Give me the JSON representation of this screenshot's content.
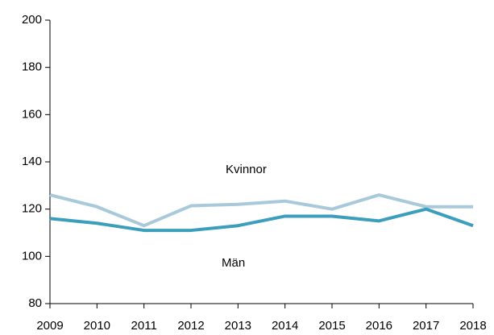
{
  "chart_data": {
    "type": "line",
    "x": [
      2009,
      2010,
      2011,
      2012,
      2013,
      2014,
      2015,
      2016,
      2017,
      2018
    ],
    "xlim": [
      2009,
      2018
    ],
    "xticks": [
      2009,
      2010,
      2011,
      2012,
      2013,
      2014,
      2015,
      2016,
      2017,
      2018
    ],
    "ylim": [
      80,
      200
    ],
    "yticks": [
      80,
      100,
      120,
      140,
      160,
      180,
      200
    ],
    "series": [
      {
        "name": "Kvinnor",
        "color": "#a7c9d9",
        "values": [
          126,
          121,
          113,
          121.4,
          122,
          123.4,
          120,
          126,
          121,
          121
        ]
      },
      {
        "name": "Män",
        "color": "#3b9ebc",
        "values": [
          116,
          114,
          111,
          111,
          113,
          117,
          117,
          115,
          120,
          113
        ]
      }
    ]
  }
}
